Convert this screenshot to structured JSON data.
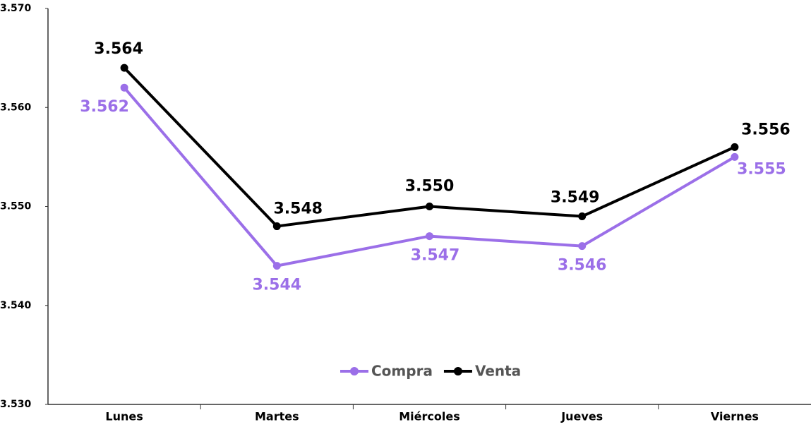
{
  "chart_data": {
    "type": "line",
    "categories": [
      "Lunes",
      "Martes",
      "Miércoles",
      "Jueves",
      "Viernes"
    ],
    "series": [
      {
        "name": "Compra",
        "color": "#9b6fe8",
        "values": [
          3562,
          3544,
          3547,
          3546,
          3555
        ],
        "value_labels": [
          "3.562",
          "3.544",
          "3.547",
          "3.546",
          "3.555"
        ]
      },
      {
        "name": "Venta",
        "color": "#000000",
        "values": [
          3564,
          3548,
          3550,
          3549,
          3556
        ],
        "value_labels": [
          "3.564",
          "3.548",
          "3.550",
          "3.549",
          "3.556"
        ]
      }
    ],
    "ylim": [
      3530,
      3570
    ],
    "yticks": [
      {
        "value": 3530,
        "label": "3.530"
      },
      {
        "value": 3540,
        "label": "3.540"
      },
      {
        "value": 3550,
        "label": "3.550"
      },
      {
        "value": 3560,
        "label": "3.560"
      },
      {
        "value": 3570,
        "label": "3.570"
      }
    ],
    "grid": false,
    "legend": "bottom"
  }
}
